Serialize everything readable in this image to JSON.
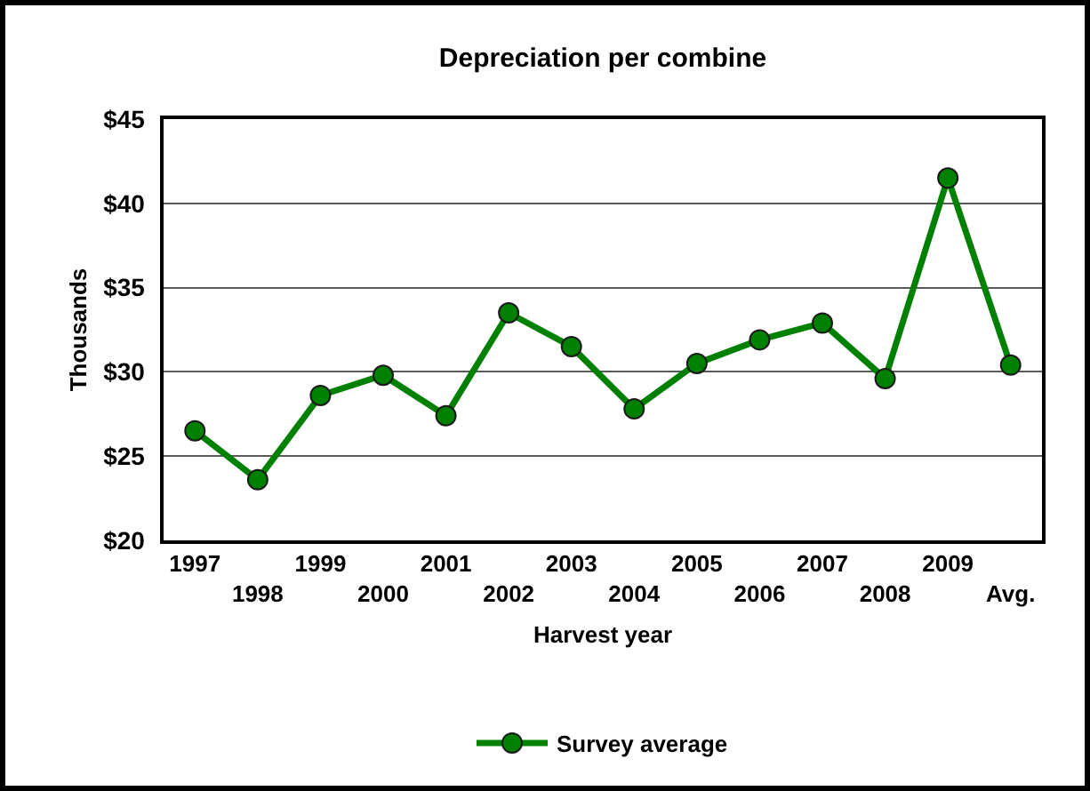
{
  "chart_data": {
    "type": "line",
    "title": "Depreciation per combine",
    "xlabel": "Harvest year",
    "ylabel": "Thousands",
    "categories": [
      "1997",
      "1998",
      "1999",
      "2000",
      "2001",
      "2002",
      "2003",
      "2004",
      "2005",
      "2006",
      "2007",
      "2008",
      "2009",
      "Avg."
    ],
    "series": [
      {
        "name": "Survey average",
        "color": "#008000",
        "values": [
          26.5,
          23.6,
          28.6,
          29.8,
          27.4,
          33.5,
          31.5,
          27.8,
          30.5,
          31.9,
          32.9,
          29.6,
          41.5,
          30.4
        ]
      }
    ],
    "ylim": [
      20,
      45
    ],
    "yticks": [
      {
        "value": 20,
        "label": "$20"
      },
      {
        "value": 25,
        "label": "$25"
      },
      {
        "value": 30,
        "label": "$30"
      },
      {
        "value": 35,
        "label": "$35"
      },
      {
        "value": 40,
        "label": "$40"
      },
      {
        "value": 45,
        "label": "$45"
      }
    ],
    "grid": "y",
    "legend": "bottom",
    "marker": "circle",
    "line_style": "solid"
  }
}
